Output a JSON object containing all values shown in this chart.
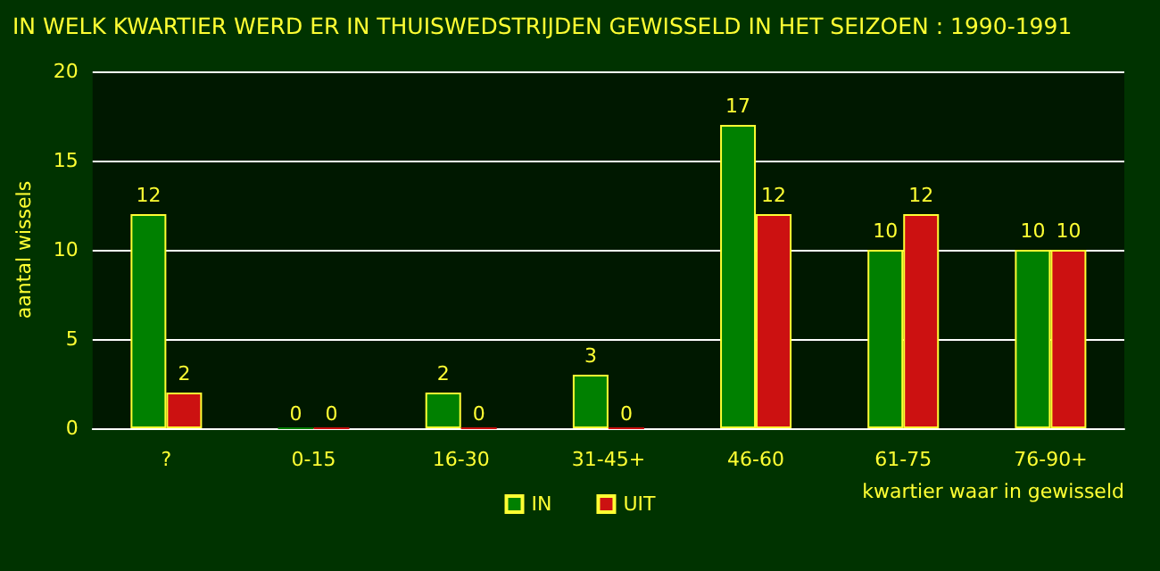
{
  "chart_data": {
    "type": "bar",
    "title": "IN WELK KWARTIER WERD ER IN THUISWEDSTRIJDEN GEWISSELD IN HET SEIZOEN : 1990-1991",
    "xlabel": "kwartier waar in gewisseld",
    "ylabel": "aantal wissels",
    "categories": [
      "?",
      "0-15",
      "16-30",
      "31-45+",
      "46-60",
      "61-75",
      "76-90+"
    ],
    "series": [
      {
        "name": "IN",
        "color": "#008000",
        "values": [
          12,
          0,
          2,
          3,
          17,
          10,
          10
        ]
      },
      {
        "name": "UIT",
        "color": "#cc1111",
        "values": [
          2,
          0,
          0,
          0,
          12,
          12,
          10
        ]
      }
    ],
    "ylim": [
      0,
      20
    ],
    "yticks": [
      0,
      5,
      10,
      15,
      20
    ],
    "grid": "y",
    "legend": "bottom",
    "data_labels": true
  }
}
